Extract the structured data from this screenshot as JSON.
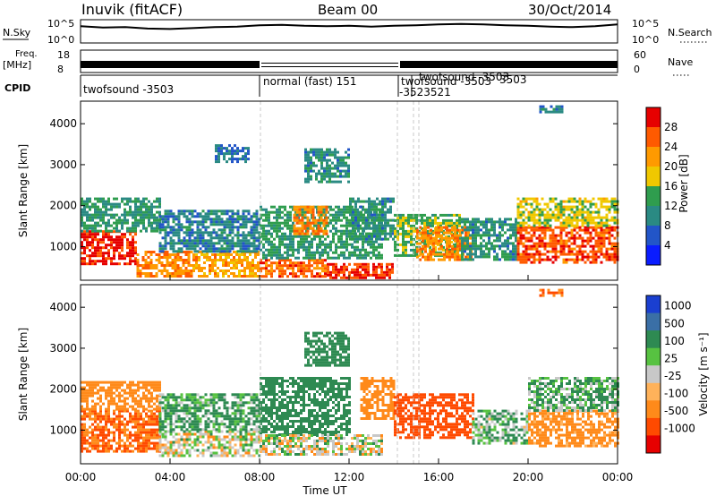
{
  "header": {
    "station": "Inuvik (fitACF)",
    "beam": "Beam 00",
    "date": "30/Oct/2014"
  },
  "noise_panel": {
    "left_label": "N.Sky",
    "right_label": "N.Search",
    "left_ticks": [
      "10^5",
      "10^0"
    ],
    "right_ticks": [
      "10^5",
      "10^0"
    ]
  },
  "freq_panel": {
    "left_label_1": "Freq.",
    "left_label_2": "[MHz]",
    "left_ticks": [
      "18",
      "8"
    ],
    "right_label": "Nave",
    "right_ticks": [
      "60",
      "0"
    ]
  },
  "cpid_panel": {
    "label": "CPID",
    "modes": [
      {
        "text": "twofsound -3503"
      },
      {
        "text": "normal (fast) 151"
      },
      {
        "text": "twofsound -3503"
      },
      {
        "text": "-3523521"
      },
      {
        "text": "twofsound -3503"
      },
      {
        "text": "3503"
      }
    ]
  },
  "x_axis": {
    "label": "Time UT",
    "ticks": [
      "00:00",
      "04:00",
      "08:00",
      "12:00",
      "16:00",
      "20:00",
      "00:00"
    ]
  },
  "chart_data": [
    {
      "type": "heatmap",
      "title": "Power",
      "ylabel": "Slant Range [km]",
      "xlabel": "Time UT",
      "xlim": [
        0,
        24
      ],
      "ylim": [
        180,
        4550
      ],
      "y_ticks": [
        1000,
        2000,
        3000,
        4000
      ],
      "colorbar": {
        "label": "Power [dB]",
        "ticks": [
          "28",
          "24",
          "20",
          "16",
          "12",
          "8",
          "4"
        ],
        "colors": [
          "#e60000",
          "#ff5a00",
          "#ff9a00",
          "#f0c800",
          "#2f9d4e",
          "#2a8a83",
          "#2255c8",
          "#0a1cff"
        ],
        "range": [
          0,
          30
        ]
      },
      "regions": [
        {
          "t": [
            0.0,
            2.5
          ],
          "r": [
            600,
            1400
          ],
          "v": 27
        },
        {
          "t": [
            0.0,
            3.5
          ],
          "r": [
            1400,
            2200
          ],
          "v": 11
        },
        {
          "t": [
            2.5,
            5.0
          ],
          "r": [
            300,
            900
          ],
          "v": 22
        },
        {
          "t": [
            5.0,
            8.0
          ],
          "r": [
            250,
            900
          ],
          "v": 20
        },
        {
          "t": [
            3.5,
            8.0
          ],
          "r": [
            900,
            1900
          ],
          "v": 9
        },
        {
          "t": [
            6.0,
            7.5
          ],
          "r": [
            3100,
            3500
          ],
          "v": 8
        },
        {
          "t": [
            8.0,
            11.0
          ],
          "r": [
            250,
            700
          ],
          "v": 24
        },
        {
          "t": [
            8.0,
            13.5
          ],
          "r": [
            700,
            2000
          ],
          "v": 12
        },
        {
          "t": [
            9.5,
            11.0
          ],
          "r": [
            1300,
            2000
          ],
          "v": 22
        },
        {
          "t": [
            10.0,
            12.0
          ],
          "r": [
            2600,
            3400
          ],
          "v": 10
        },
        {
          "t": [
            11.0,
            14.0
          ],
          "r": [
            250,
            600
          ],
          "v": 26
        },
        {
          "t": [
            12.0,
            14.0
          ],
          "r": [
            1200,
            2200
          ],
          "v": 10
        },
        {
          "t": [
            14.0,
            17.0
          ],
          "r": [
            800,
            1800
          ],
          "v": 14
        },
        {
          "t": [
            15.0,
            17.5
          ],
          "r": [
            700,
            1500
          ],
          "v": 22
        },
        {
          "t": [
            17.0,
            19.5
          ],
          "r": [
            700,
            1700
          ],
          "v": 10
        },
        {
          "t": [
            19.5,
            24.0
          ],
          "r": [
            600,
            1500
          ],
          "v": 25
        },
        {
          "t": [
            19.5,
            24.0
          ],
          "r": [
            1500,
            2200
          ],
          "v": 16
        },
        {
          "t": [
            20.5,
            21.5
          ],
          "r": [
            4300,
            4450
          ],
          "v": 9
        }
      ]
    },
    {
      "type": "heatmap",
      "title": "Velocity",
      "ylabel": "Slant Range [km]",
      "xlabel": "Time UT",
      "xlim": [
        0,
        24
      ],
      "ylim": [
        180,
        4550
      ],
      "y_ticks": [
        1000,
        2000,
        3000,
        4000
      ],
      "colorbar": {
        "label": "Velocity [m s⁻¹]",
        "ticks": [
          "1000",
          "500",
          "100",
          "25",
          "-25",
          "-100",
          "-500",
          "-1000"
        ],
        "colors": [
          "#1a3fd0",
          "#3a6fa6",
          "#2e8a52",
          "#57c241",
          "#c8c8c8",
          "#ffb25a",
          "#ff8a1a",
          "#ff4a00",
          "#e60000"
        ]
      },
      "regions": [
        {
          "t": [
            0.0,
            3.5
          ],
          "r": [
            500,
            1500
          ],
          "v": -300
        },
        {
          "t": [
            0.0,
            3.5
          ],
          "r": [
            1500,
            2200
          ],
          "v": -150
        },
        {
          "t": [
            3.5,
            8.0
          ],
          "r": [
            400,
            1000
          ],
          "v": 0
        },
        {
          "t": [
            3.5,
            8.0
          ],
          "r": [
            1000,
            1900
          ],
          "v": 80
        },
        {
          "t": [
            8.0,
            12.0
          ],
          "r": [
            900,
            2300
          ],
          "v": 200
        },
        {
          "t": [
            8.0,
            13.5
          ],
          "r": [
            400,
            900
          ],
          "v": 0
        },
        {
          "t": [
            10.0,
            12.0
          ],
          "r": [
            2600,
            3400
          ],
          "v": 150
        },
        {
          "t": [
            12.5,
            14.0
          ],
          "r": [
            1300,
            2300
          ],
          "v": -200
        },
        {
          "t": [
            14.0,
            17.5
          ],
          "r": [
            800,
            1900
          ],
          "v": -400
        },
        {
          "t": [
            17.5,
            20.0
          ],
          "r": [
            700,
            1500
          ],
          "v": 50
        },
        {
          "t": [
            20.0,
            24.0
          ],
          "r": [
            600,
            1500
          ],
          "v": -120
        },
        {
          "t": [
            20.0,
            24.0
          ],
          "r": [
            1500,
            2300
          ],
          "v": 60
        },
        {
          "t": [
            20.5,
            21.5
          ],
          "r": [
            4300,
            4450
          ],
          "v": -300
        }
      ]
    }
  ],
  "noise_series": {
    "type": "line",
    "n_sky_log": [
      3.6,
      3.3,
      3.4,
      3.1,
      3.0,
      3.2,
      3.4,
      3.5,
      3.8,
      3.9,
      3.7,
      3.6,
      3.7,
      3.5,
      3.7,
      3.8,
      4.0,
      4.1,
      4.0,
      3.8,
      3.7,
      3.5,
      3.4,
      3.6,
      4.0
    ],
    "ylim": [
      0,
      5
    ]
  }
}
